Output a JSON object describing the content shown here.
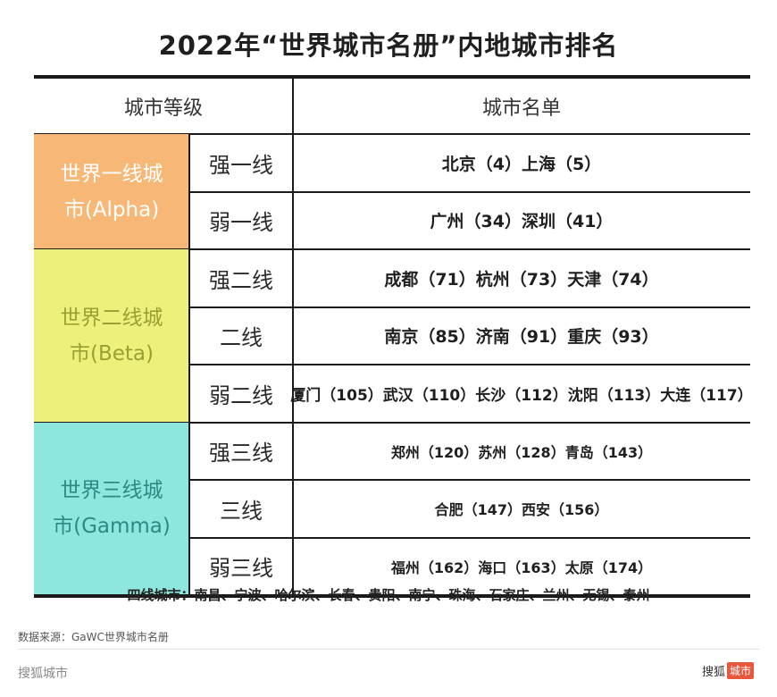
{
  "title": "2022年“世界城市名册”内地城市排名",
  "table": {
    "header": {
      "level": "城市等级",
      "list": "城市名单"
    },
    "tiers": [
      {
        "name_line1": "世界一线城",
        "name_line2": "市(Alpha)",
        "bg_color": "#f7b877",
        "text_color": "#ffffff",
        "rows": [
          {
            "sub": "强一线",
            "cities": "北京（4）上海（5）"
          },
          {
            "sub": "弱一线",
            "cities": "广州（34）深圳（41）"
          }
        ]
      },
      {
        "name_line1": "世界二线城",
        "name_line2": "市(Beta)",
        "bg_color": "#edf07a",
        "text_color": "#9aa033",
        "rows": [
          {
            "sub": "强二线",
            "cities": "成都（71）杭州（73）天津（74）"
          },
          {
            "sub": "二线",
            "cities": "南京（85）济南（91）重庆（93）"
          },
          {
            "sub": "弱二线",
            "cities": "厦门（105）武汉（110）长沙（112）沈阳（113）大连（117）"
          }
        ]
      },
      {
        "name_line1": "世界三线城",
        "name_line2": "市(Gamma)",
        "bg_color": "#8ee7df",
        "text_color": "#2b8a84",
        "rows": [
          {
            "sub": "强三线",
            "cities": "郑州（120）苏州（128）青岛（143）"
          },
          {
            "sub": "三线",
            "cities": "合肥（147）西安（156）"
          },
          {
            "sub": "弱三线",
            "cities": "福州（162）海口（163）太原（174）"
          }
        ]
      }
    ]
  },
  "fourth_tier": "四线城市：南昌、宁波、哈尔滨、长春、贵阳、南宁、珠海、石家庄、兰州、无锡、泰州",
  "source": "数据来源：GaWC世界城市名册",
  "brand_left": "搜狐城市",
  "brand_right_text": "搜狐",
  "brand_right_badge": "城市"
}
